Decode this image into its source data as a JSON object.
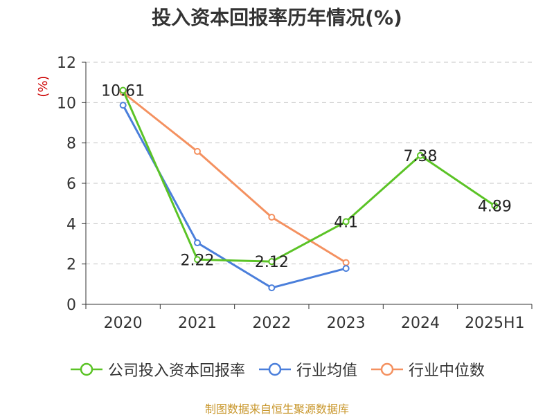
{
  "chart_data": {
    "type": "line",
    "title": "投入资本回报率历年情况(%)",
    "ylabel": "(%)",
    "categories": [
      "2020",
      "2021",
      "2022",
      "2023",
      "2024",
      "2025H1"
    ],
    "ylim": [
      0,
      12
    ],
    "yticks": [
      0,
      2,
      4,
      6,
      8,
      10,
      12
    ],
    "grid": true,
    "legend_position": "bottom",
    "series": [
      {
        "name": "公司投入资本回报率",
        "color": "#5bc326",
        "values": [
          10.61,
          2.22,
          2.12,
          4.1,
          7.38,
          4.89
        ],
        "labels": [
          "10.61",
          "2.22",
          "2.12",
          "4.1",
          "7.38",
          "4.89"
        ]
      },
      {
        "name": "行业均值",
        "color": "#4b7fdb",
        "values": [
          9.87,
          3.05,
          0.82,
          1.78,
          null,
          null
        ]
      },
      {
        "name": "行业中位数",
        "color": "#f49160",
        "values": [
          10.5,
          7.58,
          4.32,
          2.07,
          null,
          null
        ]
      }
    ]
  },
  "source": "制图数据来自恒生聚源数据库"
}
